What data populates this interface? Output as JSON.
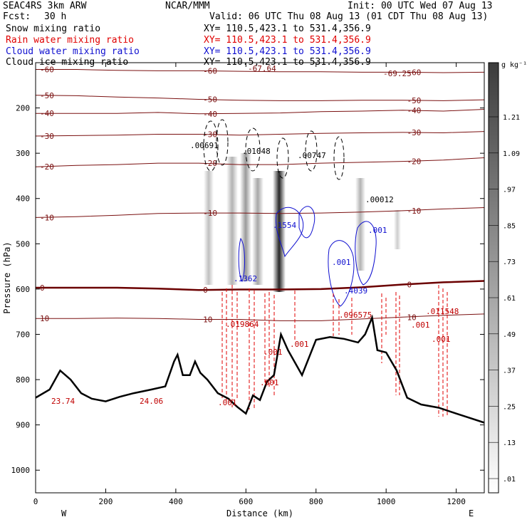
{
  "header": {
    "project": "SEAC4RS  3km ARW",
    "center": "NCAR/MMM",
    "init": "Init: 00 UTC Wed 07 Aug 13",
    "fcst_label": "Fcst:",
    "fcst_value": "30 h",
    "valid": "Valid: 06 UTC Thu 08 Aug 13 (01 CDT Thu 08 Aug 13)"
  },
  "legend": [
    {
      "name": "Snow mixing ratio",
      "xy": "XY= 110.5,423.1 to 531.4,356.9",
      "color": "#000000"
    },
    {
      "name": "Rain water mixing ratio",
      "xy": "XY= 110.5,423.1 to 531.4,356.9",
      "color": "#e00000"
    },
    {
      "name": "Cloud water mixing ratio",
      "xy": "XY= 110.5,423.1 to 531.4,356.9",
      "color": "#1010d0"
    },
    {
      "name": "Cloud ice mixing ratio",
      "xy": "XY= 110.5,423.1 to 531.4,356.9",
      "color": "#000000"
    }
  ],
  "colors": {
    "temperature": "#7a1010",
    "freezing": "#6b0000",
    "rain": "#e00000",
    "cloud": "#1010d0",
    "terrain": "#000000"
  },
  "chart_data": {
    "type": "cross-section contour",
    "xlabel": "Distance (km)",
    "ylabel": "Pressure (hPa)",
    "xlim": [
      0,
      1280
    ],
    "ylim": [
      1050,
      100
    ],
    "x_ticks": [
      0,
      200,
      400,
      600,
      800,
      1000,
      1200
    ],
    "y_ticks": [
      200,
      300,
      400,
      500,
      600,
      700,
      800,
      900,
      1000
    ],
    "y_tick_labels": [
      "200",
      "300",
      "400",
      "500",
      "600",
      "700",
      "800",
      "900",
      "1000"
    ],
    "x_tick_labels": [
      "0",
      "200",
      "400",
      "600",
      "800",
      "1000",
      "1200"
    ],
    "end_labels": {
      "left": "W",
      "right": "E"
    },
    "colorbar": {
      "unit": "g kg⁻¹",
      "levels": [
        ".01",
        ".13",
        ".25",
        ".37",
        ".49",
        ".61",
        ".73",
        ".85",
        ".97",
        "1.09",
        "1.21"
      ]
    },
    "temperature_isotherms": [
      {
        "label": "-60",
        "pressures": [
          115,
          115,
          117,
          118,
          118,
          119,
          120,
          120,
          121,
          121,
          122,
          121
        ]
      },
      {
        "label": "-50",
        "pressures": [
          172,
          173,
          176,
          178,
          181,
          183,
          184,
          184,
          183,
          183,
          184,
          182
        ]
      },
      {
        "label": "-40",
        "pressures": [
          212,
          212,
          212,
          210,
          213,
          212,
          211,
          208,
          207,
          205,
          207,
          203
        ]
      },
      {
        "label": "-30",
        "pressures": [
          262,
          261,
          260,
          258,
          258,
          260,
          258,
          256,
          255,
          254,
          255,
          252
        ]
      },
      {
        "label": "-20",
        "pressures": [
          330,
          327,
          325,
          322,
          322,
          325,
          325,
          322,
          320,
          318,
          315,
          310
        ]
      },
      {
        "label": "-10",
        "pressures": [
          442,
          440,
          437,
          433,
          432,
          432,
          433,
          432,
          430,
          427,
          423,
          420
        ]
      },
      {
        "label": "0",
        "pressures": [
          597,
          597,
          597,
          599,
          602,
          601,
          601,
          600,
          596,
          590,
          585,
          582
        ]
      },
      {
        "label": "10",
        "pressures": [
          665,
          665,
          664,
          665,
          667,
          667,
          670,
          670,
          666,
          662,
          658,
          655
        ]
      }
    ],
    "rain_labels": [
      ".019864",
      ".001",
      ".001",
      ".001",
      ".001",
      ".001",
      ".011548",
      ".001"
    ],
    "cloud_water_labels": [
      ".1362",
      ".1554",
      ".001",
      ".001",
      ".4039"
    ],
    "snow_ice_labels": [
      ".00691",
      ".01048",
      ".00747",
      ".00012"
    ],
    "surface_labels": [
      "23.74",
      "24.06"
    ],
    "extra_labels": [
      "-67.64",
      "-69.25",
      ".096575"
    ]
  }
}
